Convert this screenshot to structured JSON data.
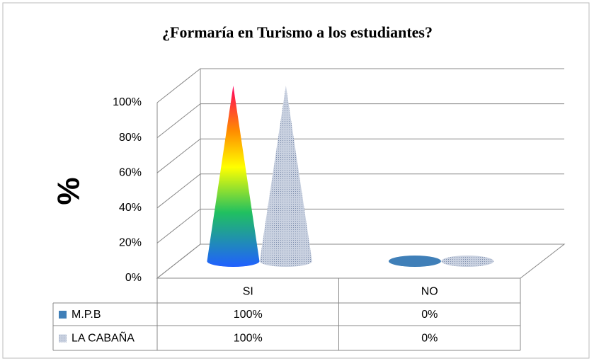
{
  "chart_data": {
    "type": "cone3d",
    "title": "¿Formaría en Turismo a los estudiantes?",
    "y_label": "%",
    "categories": [
      "SI",
      "NO"
    ],
    "series": [
      {
        "name": "M.P.B",
        "color": "#3f7fb8",
        "values": [
          100,
          0
        ],
        "value_labels": [
          "100%",
          "0%"
        ]
      },
      {
        "name": "LA CABAÑA",
        "color": "#a9b6cc",
        "values": [
          100,
          0
        ],
        "value_labels": [
          "100%",
          "0%"
        ]
      }
    ],
    "ylim": [
      0,
      100
    ],
    "yticks": [
      {
        "value": 0,
        "label": "0%"
      },
      {
        "value": 20,
        "label": "20%"
      },
      {
        "value": 40,
        "label": "40%"
      },
      {
        "value": 60,
        "label": "60%"
      },
      {
        "value": 80,
        "label": "80%"
      },
      {
        "value": 100,
        "label": "100%"
      }
    ],
    "grid": true
  }
}
